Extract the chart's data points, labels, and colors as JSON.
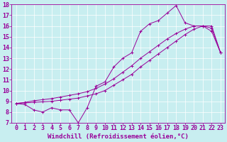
{
  "background_color": "#c8eef0",
  "line_color": "#990099",
  "xlim": [
    -0.5,
    23.5
  ],
  "ylim": [
    7,
    18
  ],
  "xticks": [
    0,
    1,
    2,
    3,
    4,
    5,
    6,
    7,
    8,
    9,
    10,
    11,
    12,
    13,
    14,
    15,
    16,
    17,
    18,
    19,
    20,
    21,
    22,
    23
  ],
  "yticks": [
    7,
    8,
    9,
    10,
    11,
    12,
    13,
    14,
    15,
    16,
    17,
    18
  ],
  "xlabel": "Windchill (Refroidissement éolien,°C)",
  "font_size_xlabel": 6.5,
  "font_size_ticks": 6,
  "marker": "+",
  "line1_x": [
    0,
    1,
    2,
    3,
    4,
    5,
    6,
    7,
    8,
    9,
    10,
    11,
    12,
    13,
    14,
    15,
    16,
    17,
    18,
    19,
    20,
    21,
    22,
    23
  ],
  "line1_y": [
    8.8,
    8.7,
    8.2,
    8.0,
    8.4,
    8.2,
    8.2,
    7.0,
    8.4,
    10.4,
    10.8,
    12.2,
    13.0,
    13.5,
    15.5,
    16.2,
    16.5,
    17.2,
    17.9,
    16.3,
    16.0,
    16.0,
    15.5,
    13.5
  ],
  "line2_x": [
    0,
    1,
    2,
    3,
    4,
    5,
    6,
    7,
    8,
    9,
    10,
    11,
    12,
    13,
    14,
    15,
    16,
    17,
    18,
    19,
    20,
    21,
    22,
    23
  ],
  "line2_y": [
    8.8,
    8.85,
    8.9,
    8.95,
    9.0,
    9.1,
    9.2,
    9.3,
    9.5,
    9.7,
    10.0,
    10.5,
    11.0,
    11.5,
    12.2,
    12.8,
    13.4,
    14.0,
    14.6,
    15.2,
    15.7,
    16.0,
    16.0,
    13.5
  ],
  "line3_x": [
    0,
    1,
    2,
    3,
    4,
    5,
    6,
    7,
    8,
    9,
    10,
    11,
    12,
    13,
    14,
    15,
    16,
    17,
    18,
    19,
    20,
    21,
    22,
    23
  ],
  "line3_y": [
    8.8,
    8.9,
    9.05,
    9.15,
    9.25,
    9.4,
    9.55,
    9.7,
    9.9,
    10.2,
    10.6,
    11.1,
    11.7,
    12.3,
    13.0,
    13.6,
    14.2,
    14.8,
    15.3,
    15.7,
    16.0,
    16.0,
    15.8,
    13.5
  ]
}
